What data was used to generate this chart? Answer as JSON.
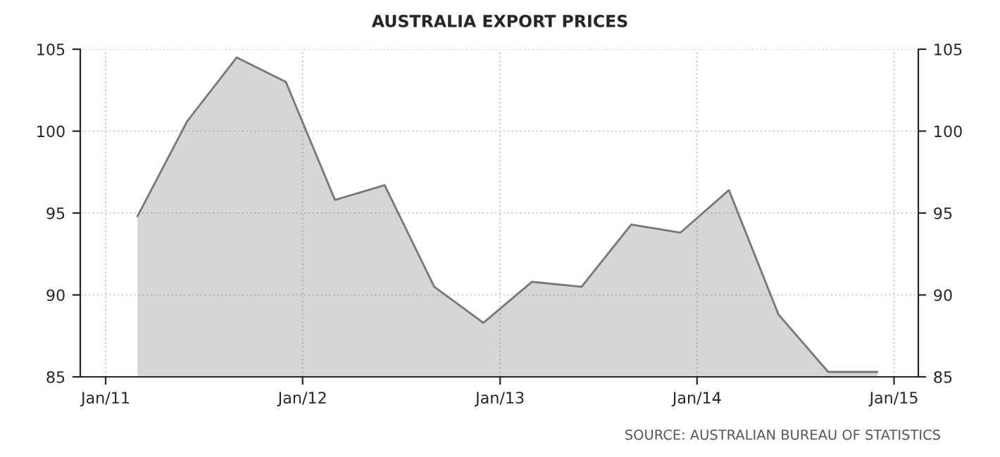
{
  "chart_data": {
    "type": "area",
    "title": "AUSTRALIA EXPORT PRICES",
    "annotations": [
      "SOURCE: AUSTRALIAN BUREAU OF STATISTICS"
    ],
    "x": [
      "2011-03-01",
      "2011-06-01",
      "2011-09-01",
      "2011-12-01",
      "2012-03-01",
      "2012-06-01",
      "2012-09-01",
      "2012-12-01",
      "2013-03-01",
      "2013-06-01",
      "2013-09-01",
      "2013-12-01",
      "2014-03-01",
      "2014-06-01",
      "2014-09-01",
      "2014-12-01"
    ],
    "series": [
      {
        "color": "#777777",
        "values": [
          94.8,
          100.6,
          104.5,
          103.0,
          95.8,
          96.7,
          90.5,
          88.3,
          90.8,
          90.5,
          94.3,
          93.8,
          96.4,
          88.8,
          85.3,
          85.3
        ]
      }
    ],
    "xlim": [
      "2010-11-15",
      "2015-02-15"
    ],
    "xticks": [
      {
        "value": "2011-01-01",
        "label": "Jan/11"
      },
      {
        "value": "2012-01-01",
        "label": "Jan/12"
      },
      {
        "value": "2013-01-01",
        "label": "Jan/13"
      },
      {
        "value": "2014-01-01",
        "label": "Jan/14"
      },
      {
        "value": "2015-01-01",
        "label": "Jan/15"
      }
    ],
    "ylim": [
      85,
      105
    ],
    "yticks": [
      85,
      90,
      95,
      100,
      105
    ],
    "y2lim": [
      85,
      105
    ],
    "y2ticks": [
      85,
      90,
      95,
      100,
      105
    ],
    "grid": true
  }
}
